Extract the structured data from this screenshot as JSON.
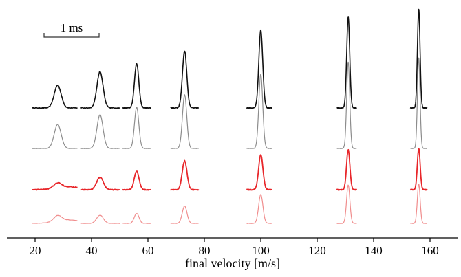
{
  "chart_data": {
    "type": "line",
    "title": "",
    "xlabel": "final velocity [m/s]",
    "ylabel": "",
    "xlim": [
      10,
      170
    ],
    "x_ticks": [
      20,
      40,
      60,
      80,
      100,
      120,
      140,
      160
    ],
    "scale_bar": {
      "label": "1 ms"
    },
    "grid": false,
    "legend": "none",
    "rows": [
      {
        "color": "#111111",
        "style": "noisy"
      },
      {
        "color": "#8c8c8c",
        "style": "smooth"
      },
      {
        "color": "#e8262a",
        "style": "noisy"
      },
      {
        "color": "#f08d8d",
        "style": "smooth"
      }
    ],
    "peaks": [
      {
        "v": 28,
        "x_range": [
          19,
          35
        ],
        "heights": [
          0.55,
          0.58,
          0.12,
          0.14
        ]
      },
      {
        "v": 43,
        "x_range": [
          36,
          50
        ],
        "heights": [
          0.88,
          0.82,
          0.3,
          0.2
        ]
      },
      {
        "v": 56,
        "x_range": [
          51,
          61
        ],
        "heights": [
          1.07,
          1.0,
          0.45,
          0.24
        ]
      },
      {
        "v": 73,
        "x_range": [
          68,
          78
        ],
        "heights": [
          1.38,
          1.3,
          0.7,
          0.42
        ]
      },
      {
        "v": 100,
        "x_range": [
          95,
          104
        ],
        "heights": [
          1.88,
          1.8,
          0.85,
          0.7
        ]
      },
      {
        "v": 131,
        "x_range": [
          127,
          134
        ],
        "heights": [
          2.2,
          2.1,
          0.97,
          0.93
        ]
      },
      {
        "v": 156,
        "x_range": [
          153,
          159
        ],
        "heights": [
          2.4,
          2.2,
          1.0,
          0.95
        ]
      }
    ]
  }
}
